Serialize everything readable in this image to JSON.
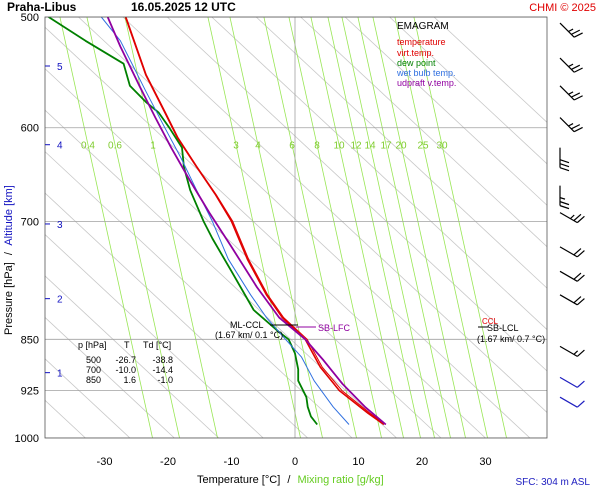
{
  "header": {
    "station": "Praha-Libus",
    "datetime": "16.05.2025 12 UTC",
    "copyright": "CHMI © 2025"
  },
  "chart_title": "EMAGRAM",
  "ylabel_pressure": "Pressure [hPa]",
  "ylabel_sep": "/",
  "ylabel_altitude": "Altitude [km]",
  "xlabel_temperature": "Temperature [°C]",
  "xlabel_sep": "/",
  "xlabel_mixing": "Mixing ratio [g/kg]",
  "surface_note": "SFC: 304 m ASL",
  "legend": [
    {
      "label": "temperature",
      "color": "#e00000"
    },
    {
      "label": "virt.temp.",
      "color": "#e00000"
    },
    {
      "label": "dew point",
      "color": "#008000"
    },
    {
      "label": "wet bulb temp.",
      "color": "#3070e0"
    },
    {
      "label": "udpraft v.temp.",
      "color": "#9000a0"
    }
  ],
  "table": {
    "headers": [
      "p [hPa]",
      "T",
      "Td [°C]"
    ],
    "rows": [
      [
        "500",
        "-26.7",
        "-38.8"
      ],
      [
        "700",
        "-10.0",
        "-14.4"
      ],
      [
        "850",
        "1.6",
        "-1.0"
      ]
    ]
  },
  "annotations": {
    "ml_ccl": "ML-CCL",
    "ml_ccl_detail": "(1.67 km/ 0.1 °C)",
    "sb_lfc": "SB-LFC",
    "sb_lcl": "SB-LCL",
    "sb_lcl_detail": "(1.67 km/ 0.7 °C)",
    "ccl_tag": "CCL"
  },
  "colors": {
    "temperature": "#e00000",
    "dewpoint": "#008000",
    "wetbulb": "#3070e0",
    "updraft": "#9000a0",
    "mixing": "#99e655",
    "dry_adiabat": "#c8c8c8",
    "grid": "#a0a0a0",
    "altitude_tick": "#1010c0",
    "header_red": "#e00000",
    "sfc_blue": "#2020c0"
  },
  "chart_data": {
    "type": "line",
    "x_axis": {
      "label": "Temperature [°C]",
      "ticks": [
        -30,
        -20,
        -10,
        0,
        10,
        20,
        30
      ]
    },
    "y_axis": {
      "label": "Pressure [hPa]",
      "scale": "log",
      "ticks": [
        500,
        600,
        700,
        850,
        925,
        1000
      ],
      "ylim": [
        1000,
        500
      ]
    },
    "altitude_ticks_km": [
      1,
      2,
      3,
      4,
      5
    ],
    "mixing_ratio_labels": [
      "0.4",
      "0.6",
      "1",
      "3",
      "4",
      "6",
      "8",
      "10",
      "12",
      "14",
      "17",
      "20",
      "25",
      "30"
    ],
    "mixing_ratio_label_pressure": 617,
    "series": [
      {
        "name": "temperature",
        "points": [
          [
            14.0,
            978
          ],
          [
            11.5,
            960
          ],
          [
            7.0,
            925
          ],
          [
            4.0,
            890
          ],
          [
            1.6,
            850
          ],
          [
            -2.0,
            820
          ],
          [
            -4.5,
            790
          ],
          [
            -7.5,
            745
          ],
          [
            -10.0,
            700
          ],
          [
            -12.5,
            670
          ],
          [
            -15.5,
            640
          ],
          [
            -18.5,
            610
          ],
          [
            -20.5,
            585
          ],
          [
            -23.5,
            550
          ],
          [
            -26.7,
            500
          ]
        ]
      },
      {
        "name": "virt.temp.",
        "points": [
          [
            14.3,
            978
          ],
          [
            11.8,
            960
          ],
          [
            7.4,
            925
          ],
          [
            4.3,
            890
          ],
          [
            1.9,
            850
          ],
          [
            -1.8,
            820
          ],
          [
            -4.3,
            790
          ],
          [
            -7.3,
            745
          ],
          [
            -9.8,
            700
          ],
          [
            -12.4,
            670
          ],
          [
            -15.4,
            640
          ],
          [
            -18.4,
            610
          ],
          [
            -20.4,
            585
          ],
          [
            -23.4,
            550
          ],
          [
            -26.6,
            500
          ]
        ]
      },
      {
        "name": "dew point",
        "points": [
          [
            3.5,
            978
          ],
          [
            2.5,
            965
          ],
          [
            2.0,
            950
          ],
          [
            1.8,
            935
          ],
          [
            0.5,
            910
          ],
          [
            0.5,
            893
          ],
          [
            0.0,
            870
          ],
          [
            -1.0,
            850
          ],
          [
            -2.5,
            840
          ],
          [
            -6.5,
            810
          ],
          [
            -10.0,
            760
          ],
          [
            -13.0,
            720
          ],
          [
            -14.4,
            700
          ],
          [
            -16.5,
            665
          ],
          [
            -17.5,
            640
          ],
          [
            -17.8,
            620
          ],
          [
            -19.8,
            600
          ],
          [
            -21.5,
            585
          ],
          [
            -23.5,
            575
          ],
          [
            -26.0,
            560
          ],
          [
            -27.0,
            540
          ],
          [
            -33.0,
            520
          ],
          [
            -38.8,
            500
          ]
        ]
      },
      {
        "name": "wet bulb temp.",
        "points": [
          [
            8.5,
            978
          ],
          [
            6.0,
            950
          ],
          [
            3.0,
            910
          ],
          [
            1.0,
            875
          ],
          [
            -1.5,
            850
          ],
          [
            -4.5,
            820
          ],
          [
            -7.0,
            790
          ],
          [
            -10.5,
            745
          ],
          [
            -13.0,
            700
          ],
          [
            -15.5,
            665
          ],
          [
            -18.0,
            630
          ],
          [
            -20.5,
            600
          ],
          [
            -23.5,
            565
          ],
          [
            -27.5,
            520
          ],
          [
            -30.5,
            500
          ]
        ]
      },
      {
        "name": "udpraft v.temp.",
        "points": [
          [
            14.3,
            978
          ],
          [
            11.0,
            950
          ],
          [
            7.5,
            915
          ],
          [
            4.5,
            880
          ],
          [
            1.6,
            850
          ],
          [
            -2.5,
            820
          ],
          [
            -6.0,
            780
          ],
          [
            -10.0,
            730
          ],
          [
            -13.5,
            690
          ],
          [
            -16.5,
            655
          ],
          [
            -19.5,
            620
          ],
          [
            -22.0,
            590
          ],
          [
            -24.5,
            560
          ],
          [
            -27.5,
            525
          ],
          [
            -29.5,
            500
          ]
        ]
      }
    ],
    "wind_barbs": [
      {
        "p": 505,
        "dir": 315,
        "speed_kt": 25
      },
      {
        "p": 535,
        "dir": 315,
        "speed_kt": 25
      },
      {
        "p": 560,
        "dir": 315,
        "speed_kt": 25
      },
      {
        "p": 590,
        "dir": 315,
        "speed_kt": 25
      },
      {
        "p": 620,
        "dir": 0,
        "speed_kt": 30
      },
      {
        "p": 660,
        "dir": 0,
        "speed_kt": 25
      },
      {
        "p": 690,
        "dir": 300,
        "speed_kt": 25
      },
      {
        "p": 730,
        "dir": 300,
        "speed_kt": 20
      },
      {
        "p": 760,
        "dir": 300,
        "speed_kt": 20
      },
      {
        "p": 790,
        "dir": 300,
        "speed_kt": 20
      },
      {
        "p": 860,
        "dir": 300,
        "speed_kt": 15
      },
      {
        "p": 905,
        "dir": 300,
        "speed_kt": 10
      },
      {
        "p": 935,
        "dir": 300,
        "speed_kt": 10
      }
    ]
  }
}
